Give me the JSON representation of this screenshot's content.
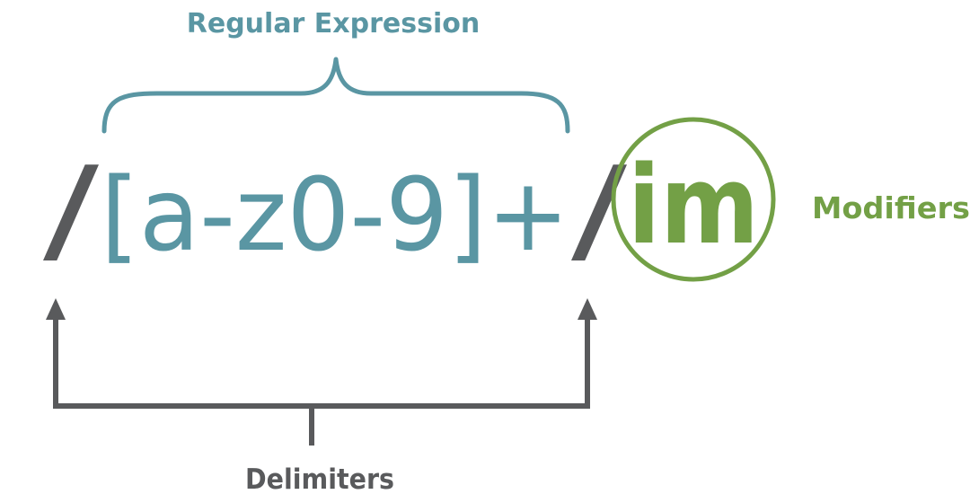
{
  "labels": {
    "regular_expression": "Regular Expression",
    "modifiers": "Modifiers",
    "delimiters": "Delimiters"
  },
  "expression": {
    "delimiter_open": "/",
    "pattern": "[a-z0-9]+",
    "delimiter_close": "/",
    "flags": "im"
  },
  "colors": {
    "delimiter": "#595a5c",
    "pattern": "#5a96a3",
    "modifier": "#73a046",
    "background": "#ffffff"
  }
}
